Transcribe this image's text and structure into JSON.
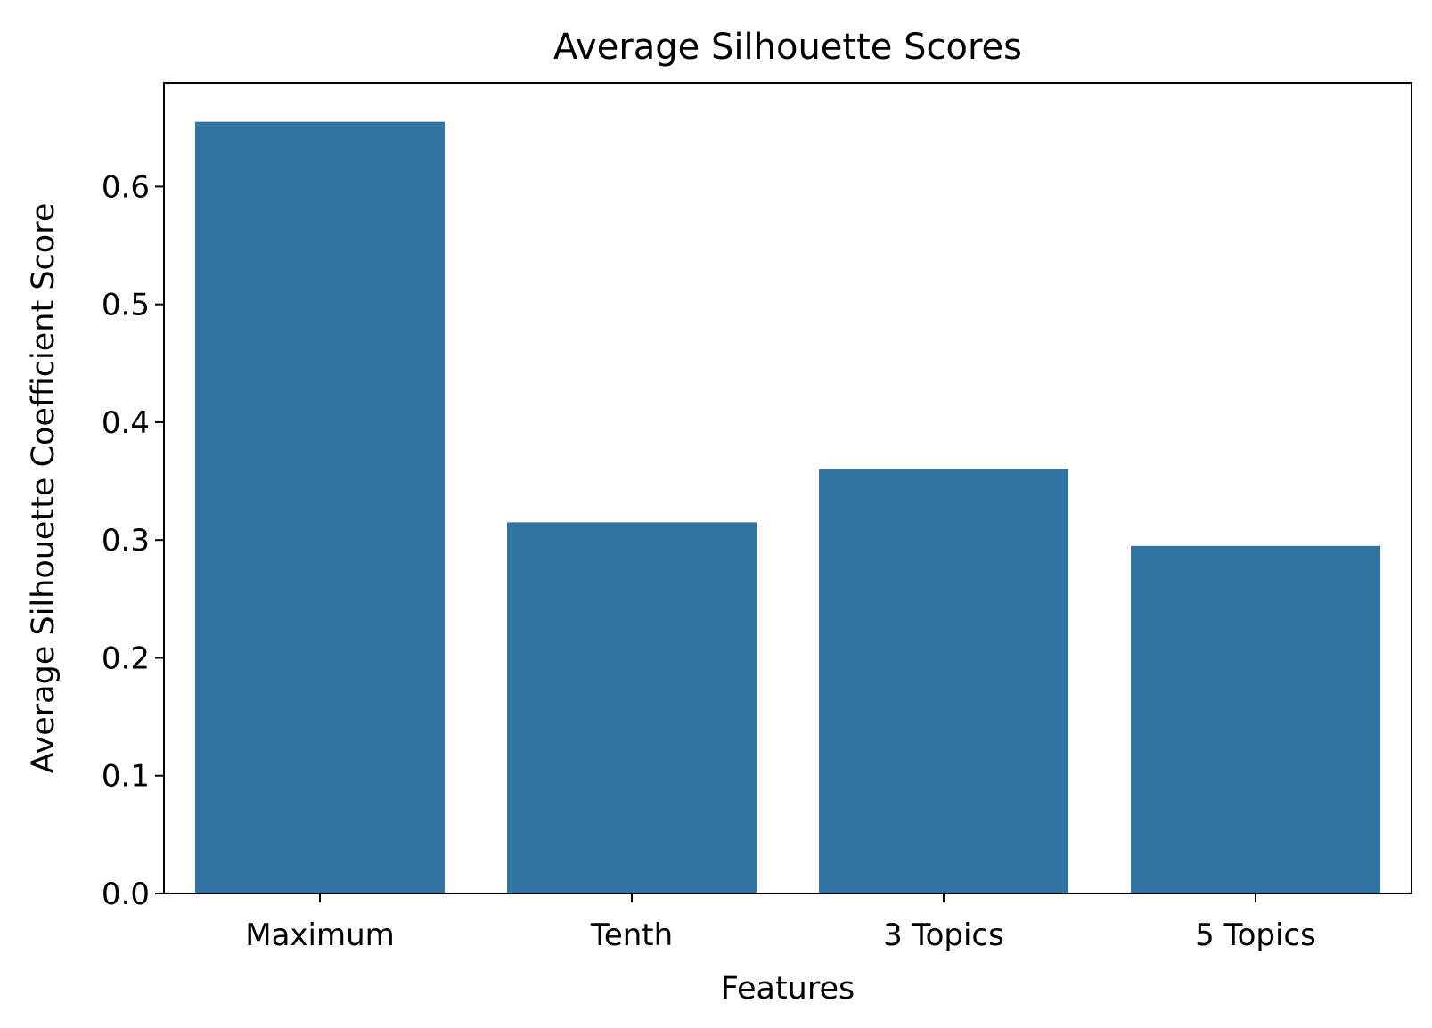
{
  "chart_data": {
    "type": "bar",
    "title": "Average Silhouette Scores",
    "xlabel": "Features",
    "ylabel": "Average Silhouette Coefficient Score",
    "categories": [
      "Maximum",
      "Tenth",
      "3 Topics",
      "5 Topics"
    ],
    "values": [
      0.655,
      0.315,
      0.36,
      0.295
    ],
    "ylim": [
      0,
      0.688
    ],
    "yticks": [
      0.0,
      0.1,
      0.2,
      0.3,
      0.4,
      0.5,
      0.6
    ],
    "ytick_labels": [
      "0.0",
      "0.1",
      "0.2",
      "0.3",
      "0.4",
      "0.5",
      "0.6"
    ],
    "bar_color": "#3274a1",
    "grid": false,
    "legend": "none"
  }
}
